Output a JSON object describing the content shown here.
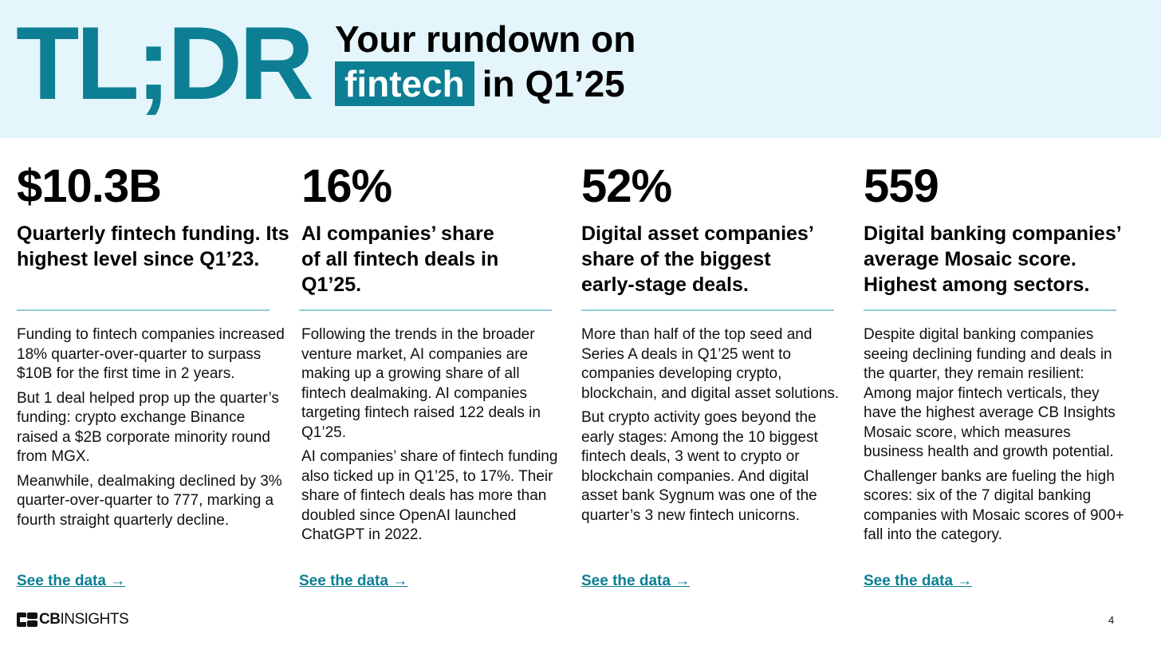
{
  "header": {
    "tldr": "TL;DR",
    "line1": "Your rundown on",
    "highlight": "fintech",
    "line2_rest": "in Q1’25"
  },
  "columns": [
    {
      "stat": "$10.3B",
      "subhead": "Quarterly fintech funding. Its highest level since Q1’23.",
      "paragraphs": [
        "Funding to fintech companies increased 18% quarter-over-quarter to surpass $10B for the first time in 2 years.",
        "But 1 deal helped prop up the quarter’s funding: crypto exchange Binance raised a $2B corporate minority round from MGX.",
        "Meanwhile, dealmaking declined by 3% quarter-over-quarter to 777, marking a fourth straight quarterly decline."
      ],
      "link": "See the data →"
    },
    {
      "stat": "16%",
      "subhead": "AI companies’ share of all fintech deals in Q1’25.",
      "paragraphs": [
        "Following the trends in the broader venture market, AI companies are making up a growing share of all fintech dealmaking. AI companies targeting fintech raised 122 deals in Q1’25.",
        "AI companies’ share of fintech funding also ticked up in Q1’25, to 17%. Their share of fintech deals has more than doubled since OpenAI launched ChatGPT in 2022."
      ],
      "link": "See the data →"
    },
    {
      "stat": "52%",
      "subhead": "Digital asset companies’ share of the biggest early-stage deals.",
      "paragraphs": [
        "More than half of the top seed and Series A deals in Q1’25 went to companies developing crypto, blockchain, and digital asset solutions.",
        "But crypto activity goes beyond the early stages: Among the 10 biggest fintech deals, 3 went to crypto or blockchain companies. And digital asset bank Sygnum was one of the quarter’s 3 new fintech unicorns."
      ],
      "link": "See the data →"
    },
    {
      "stat": "559",
      "subhead": "Digital banking companies’ average Mosaic score. Highest among sectors.",
      "paragraphs": [
        "Despite digital banking companies seeing declining funding and deals in the quarter, they remain resilient: Among major fintech verticals, they have the highest average CB Insights Mosaic score, which measures business health and growth potential.",
        "Challenger banks are fueling the high scores: six of the 7 digital banking companies with Mosaic scores of 900+ fall into the category."
      ],
      "link": "See the data →"
    }
  ],
  "footer": {
    "logo_bold": "CB",
    "logo_rest": "INSIGHTS",
    "page_number": "4"
  },
  "colors": {
    "brand": "#0d7f94",
    "header_bg": "#e4f6fb",
    "divider": "#8fcdd9"
  }
}
